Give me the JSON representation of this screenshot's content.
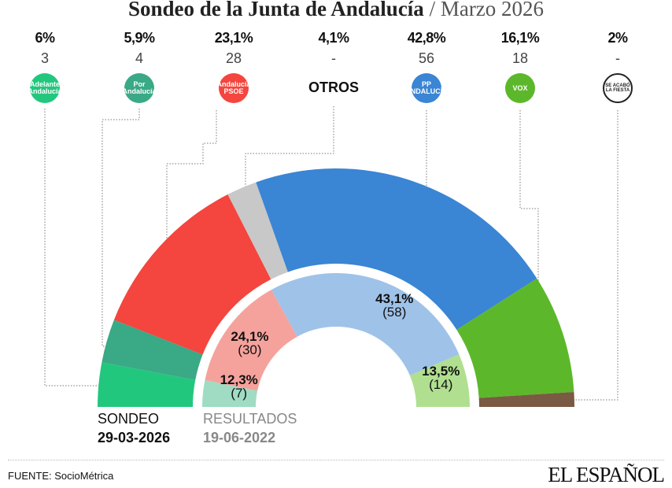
{
  "title": {
    "main": "Sondeo de la Junta de Andalucía",
    "separator": " / ",
    "sub": "Marzo 2026"
  },
  "chart_data": {
    "type": "hemicycle",
    "outer_ring": {
      "label": "SONDEO",
      "date": "29-03-2026",
      "parties": [
        {
          "party": "Adelante Andalucía",
          "pct": "6%",
          "pct_value": 6,
          "seats": "3",
          "color": "#22c77e",
          "logo_text": "Adelante Andalucía"
        },
        {
          "party": "Por Andalucía",
          "pct": "5,9%",
          "pct_value": 5.9,
          "seats": "4",
          "color": "#3aa985",
          "logo_text": "Por Andalucía"
        },
        {
          "party": "PSOE",
          "pct": "23,1%",
          "pct_value": 23.1,
          "seats": "28",
          "color": "#f4453e",
          "logo_text": "Andalucía PSOE"
        },
        {
          "party": "OTROS",
          "pct": "4,1%",
          "pct_value": 4.1,
          "seats": "-",
          "color": "#c8c8c8",
          "logo_text": "OTROS"
        },
        {
          "party": "PP",
          "pct": "42,8%",
          "pct_value": 42.8,
          "seats": "56",
          "color": "#3a85d4",
          "logo_text": "PP ANDALUCÍA"
        },
        {
          "party": "VOX",
          "pct": "16,1%",
          "pct_value": 16.1,
          "seats": "18",
          "color": "#5cb82a",
          "logo_text": "VOX"
        },
        {
          "party": "Se Acabó La Fiesta",
          "pct": "2%",
          "pct_value": 2,
          "seats": "-",
          "color": "#7a5a42",
          "logo_text": "SE ACABÓ LA FIESTA"
        }
      ]
    },
    "inner_ring": {
      "label": "RESULTADOS",
      "date": "19-06-2022",
      "parties": [
        {
          "pct": "12,3%",
          "seats": 7,
          "seats_label": "(7)",
          "color": "#9fdcc3"
        },
        {
          "pct": "24,1%",
          "seats": 30,
          "seats_label": "(30)",
          "color": "#f5a29c"
        },
        {
          "pct": "43,1%",
          "seats": 58,
          "seats_label": "(58)",
          "color": "#9fc2e8"
        },
        {
          "pct": "13,5%",
          "seats": 14,
          "seats_label": "(14)",
          "color": "#b0df90"
        }
      ]
    }
  },
  "footer": {
    "source": "FUENTE: SocioMétrica",
    "brand": "EL ESPAÑOL"
  }
}
